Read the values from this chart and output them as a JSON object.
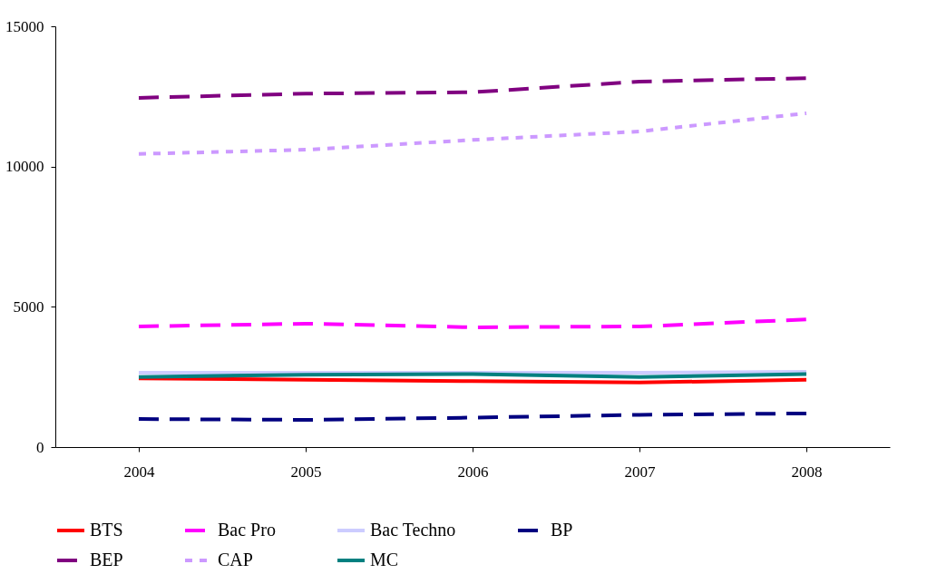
{
  "chart_data": {
    "type": "line",
    "categories": [
      "2004",
      "2005",
      "2006",
      "2007",
      "2008"
    ],
    "ylim": [
      0,
      15000
    ],
    "yticks": [
      0,
      5000,
      10000,
      15000
    ],
    "grid": false,
    "legend": "bottom",
    "marker": "none",
    "series": [
      {
        "name": "BTS",
        "color": "#ff0000",
        "line_style": "solid",
        "values": [
          2450,
          2400,
          2350,
          2300,
          2400
        ]
      },
      {
        "name": "Bac Pro",
        "color": "#ff00ff",
        "line_style": "dashed",
        "values": [
          4300,
          4400,
          4270,
          4300,
          4550
        ]
      },
      {
        "name": "Bac Techno",
        "color": "#ccccff",
        "line_style": "solid",
        "values": [
          2650,
          2650,
          2650,
          2650,
          2680
        ]
      },
      {
        "name": "BP",
        "color": "#000080",
        "line_style": "dashed",
        "values": [
          1000,
          970,
          1050,
          1150,
          1200
        ]
      },
      {
        "name": "BEP",
        "color": "#800080",
        "line_style": "dashed",
        "values": [
          12450,
          12600,
          12650,
          13030,
          13150
        ]
      },
      {
        "name": "CAP",
        "color": "#cc99ff",
        "line_style": "dotted",
        "values": [
          10450,
          10600,
          10950,
          11250,
          11900
        ]
      },
      {
        "name": "MC",
        "color": "#008080",
        "line_style": "solid",
        "values": [
          2500,
          2580,
          2600,
          2500,
          2600
        ]
      }
    ]
  }
}
